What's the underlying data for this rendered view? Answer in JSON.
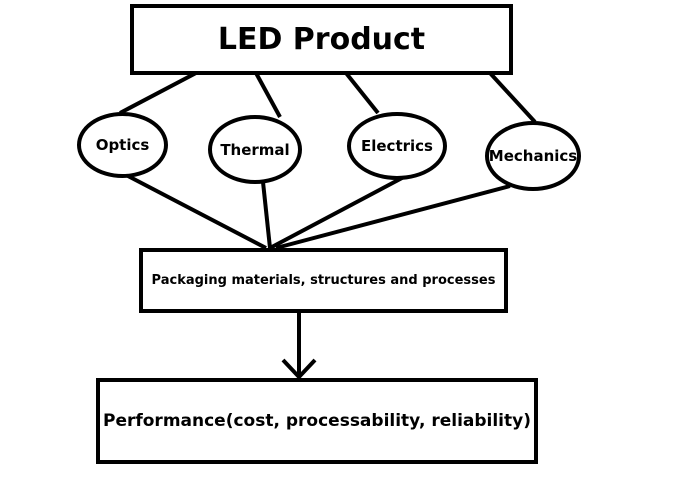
{
  "top": {
    "label": "LED Product"
  },
  "factors": [
    {
      "label": "Optics"
    },
    {
      "label": "Thermal"
    },
    {
      "label": "Electrics"
    },
    {
      "label": "Mechanics"
    }
  ],
  "middle": {
    "label": "Packaging materials, structures and processes"
  },
  "bottom": {
    "label": "Performance(cost, processability, reliability)"
  }
}
